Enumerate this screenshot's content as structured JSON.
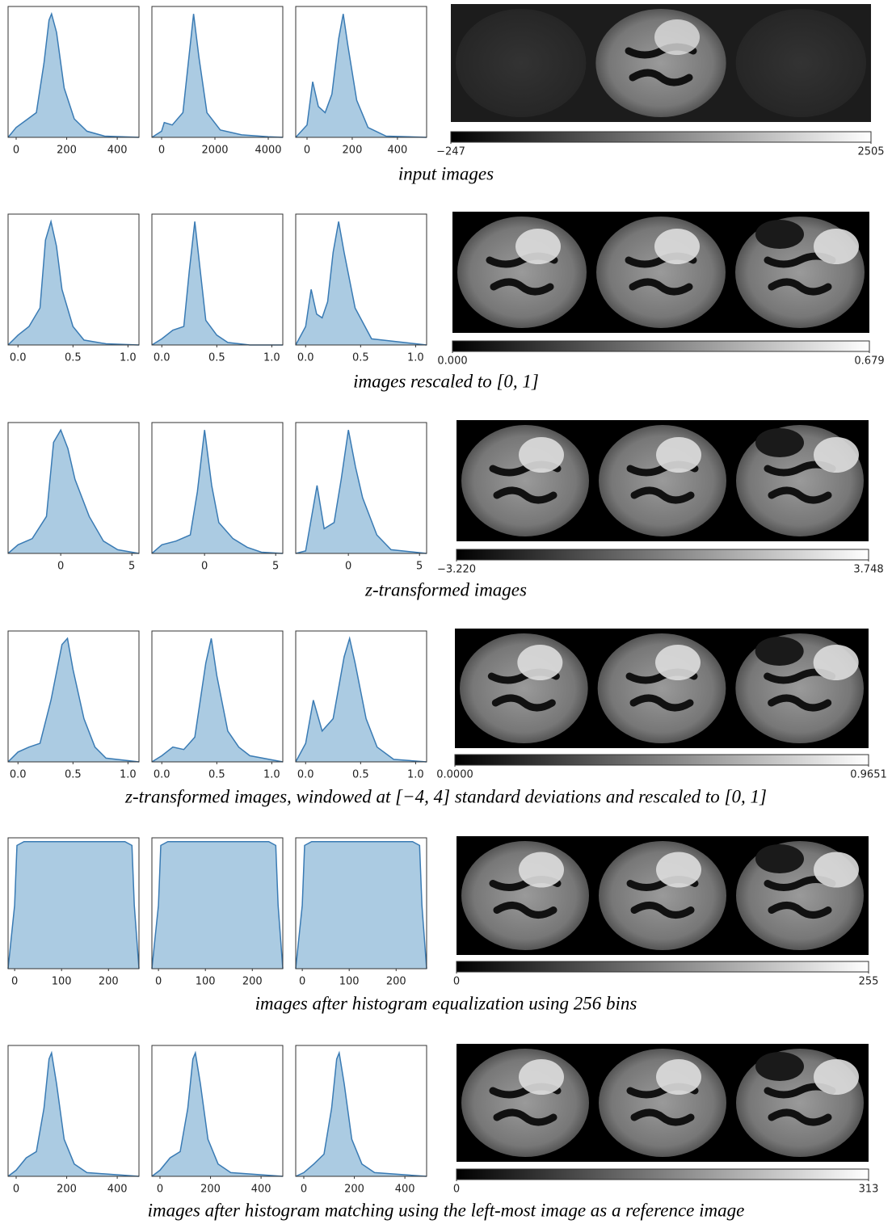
{
  "rows": [
    {
      "caption": "input images",
      "charts": [
        {
          "type": "area",
          "color": "#3a7bb4",
          "xlim": [
            -32,
            486
          ],
          "ylim": [
            0,
            1.06
          ],
          "xticks": [
            0,
            200,
            400
          ],
          "x": [
            -32,
            0,
            40,
            80,
            110,
            130,
            140,
            160,
            190,
            230,
            280,
            350,
            486
          ],
          "values": [
            0,
            0.08,
            0.14,
            0.2,
            0.6,
            0.95,
            1,
            0.85,
            0.4,
            0.15,
            0.05,
            0.01,
            0
          ]
        },
        {
          "type": "area",
          "color": "#3a7bb4",
          "xlim": [
            -364,
            4545
          ],
          "ylim": [
            0,
            1.06
          ],
          "xticks": [
            0,
            2000,
            4000
          ],
          "x": [
            -364,
            0,
            100,
            400,
            800,
            1000,
            1200,
            1400,
            1700,
            2200,
            3000,
            4000,
            4545
          ],
          "values": [
            0,
            0.05,
            0.12,
            0.1,
            0.2,
            0.6,
            1,
            0.65,
            0.2,
            0.06,
            0.02,
            0.005,
            0
          ]
        },
        {
          "type": "area",
          "color": "#3a7bb4",
          "xlim": [
            -50,
            529
          ],
          "ylim": [
            0,
            1.06
          ],
          "xticks": [
            0,
            200,
            400
          ],
          "x": [
            -50,
            0,
            25,
            50,
            80,
            110,
            140,
            160,
            180,
            220,
            270,
            350,
            529
          ],
          "values": [
            0,
            0.1,
            0.45,
            0.25,
            0.2,
            0.35,
            0.8,
            1,
            0.75,
            0.3,
            0.08,
            0.01,
            0
          ]
        }
      ],
      "colorbar": {
        "lim": [
          -247,
          2505
        ],
        "ticks": [
          {
            "value": -247,
            "label": "−247"
          },
          2505
        ]
      }
    },
    {
      "caption": "images rescaled to [0, 1]",
      "charts": [
        {
          "type": "area",
          "color": "#3a7bb4",
          "xlim": [
            -0.09,
            1.1
          ],
          "ylim": [
            0,
            1.06
          ],
          "xticks": [
            {
              "value": 0,
              "label": "0.0"
            },
            0.5,
            {
              "value": 1,
              "label": "1.0"
            }
          ],
          "x": [
            -0.09,
            0,
            0.1,
            0.2,
            0.25,
            0.3,
            0.35,
            0.4,
            0.5,
            0.6,
            0.8,
            1.1
          ],
          "values": [
            0,
            0.08,
            0.15,
            0.3,
            0.85,
            1,
            0.8,
            0.45,
            0.15,
            0.04,
            0.01,
            0
          ]
        },
        {
          "type": "area",
          "color": "#3a7bb4",
          "xlim": [
            -0.09,
            1.1
          ],
          "ylim": [
            0,
            1.06
          ],
          "xticks": [
            {
              "value": 0,
              "label": "0.0"
            },
            0.5,
            {
              "value": 1,
              "label": "1.0"
            }
          ],
          "x": [
            -0.09,
            0,
            0.1,
            0.2,
            0.25,
            0.3,
            0.35,
            0.4,
            0.5,
            0.6,
            0.8,
            1.1
          ],
          "values": [
            0,
            0.05,
            0.12,
            0.15,
            0.6,
            1,
            0.6,
            0.2,
            0.08,
            0.02,
            0,
            0
          ]
        },
        {
          "type": "area",
          "color": "#3a7bb4",
          "xlim": [
            -0.09,
            1.1
          ],
          "ylim": [
            0,
            1.06
          ],
          "xticks": [
            {
              "value": 0,
              "label": "0.0"
            },
            0.5,
            {
              "value": 1,
              "label": "1.0"
            }
          ],
          "x": [
            -0.09,
            0,
            0.05,
            0.1,
            0.15,
            0.2,
            0.25,
            0.3,
            0.35,
            0.45,
            0.6,
            1.1
          ],
          "values": [
            0,
            0.15,
            0.45,
            0.25,
            0.22,
            0.35,
            0.75,
            1,
            0.75,
            0.3,
            0.05,
            0
          ]
        }
      ],
      "colorbar": {
        "lim": [
          0,
          0.679
        ],
        "ticks": [
          {
            "value": 0,
            "label": "0.000"
          },
          0.679
        ]
      }
    },
    {
      "caption": "z-transformed images",
      "charts": [
        {
          "type": "area",
          "color": "#3a7bb4",
          "xlim": [
            -3.7,
            5.5
          ],
          "ylim": [
            0,
            1.06
          ],
          "xticks": [
            0,
            5
          ],
          "x": [
            -3.7,
            -3,
            -2,
            -1,
            -0.5,
            0,
            0.5,
            1,
            2,
            3,
            4,
            5.5
          ],
          "values": [
            0,
            0.07,
            0.12,
            0.3,
            0.9,
            1,
            0.85,
            0.6,
            0.3,
            0.1,
            0.03,
            0
          ]
        },
        {
          "type": "area",
          "color": "#3a7bb4",
          "xlim": [
            -3.7,
            5.5
          ],
          "ylim": [
            0,
            1.06
          ],
          "xticks": [
            0,
            5
          ],
          "x": [
            -3.7,
            -3,
            -2,
            -1,
            -0.5,
            0,
            0.5,
            1,
            2,
            3,
            4,
            5.5
          ],
          "values": [
            0,
            0.07,
            0.1,
            0.15,
            0.5,
            1,
            0.55,
            0.25,
            0.12,
            0.05,
            0.01,
            0
          ]
        },
        {
          "type": "area",
          "color": "#3a7bb4",
          "xlim": [
            -3.7,
            5.5
          ],
          "ylim": [
            0,
            1.06
          ],
          "xticks": [
            0,
            5
          ],
          "x": [
            -3.7,
            -3,
            -2.2,
            -1.7,
            -1,
            -0.5,
            0,
            0.5,
            1,
            2,
            3,
            5.5
          ],
          "values": [
            0,
            0.02,
            0.55,
            0.2,
            0.25,
            0.6,
            1,
            0.7,
            0.45,
            0.15,
            0.03,
            0
          ]
        }
      ],
      "colorbar": {
        "lim": [
          -3.22,
          3.748
        ],
        "ticks": [
          {
            "value": -3.22,
            "label": "−3.220"
          },
          3.748
        ]
      }
    },
    {
      "caption": "z-transformed images, windowed at [−4, 4] standard deviations and rescaled to [0, 1]",
      "charts": [
        {
          "type": "area",
          "color": "#3a7bb4",
          "xlim": [
            -0.09,
            1.1
          ],
          "ylim": [
            0,
            1.06
          ],
          "xticks": [
            {
              "value": 0,
              "label": "0.0"
            },
            0.5,
            {
              "value": 1,
              "label": "1.0"
            }
          ],
          "x": [
            -0.09,
            0,
            0.1,
            0.2,
            0.3,
            0.4,
            0.45,
            0.5,
            0.6,
            0.7,
            0.8,
            1.1
          ],
          "values": [
            0,
            0.08,
            0.12,
            0.15,
            0.5,
            0.95,
            1,
            0.75,
            0.35,
            0.12,
            0.03,
            0
          ]
        },
        {
          "type": "area",
          "color": "#3a7bb4",
          "xlim": [
            -0.09,
            1.1
          ],
          "ylim": [
            0,
            1.06
          ],
          "xticks": [
            {
              "value": 0,
              "label": "0.0"
            },
            0.5,
            {
              "value": 1,
              "label": "1.0"
            }
          ],
          "x": [
            -0.09,
            0,
            0.1,
            0.2,
            0.3,
            0.4,
            0.45,
            0.5,
            0.6,
            0.7,
            0.8,
            1.1
          ],
          "values": [
            0,
            0.05,
            0.12,
            0.1,
            0.2,
            0.8,
            1,
            0.7,
            0.25,
            0.12,
            0.05,
            0
          ]
        },
        {
          "type": "area",
          "color": "#3a7bb4",
          "xlim": [
            -0.09,
            1.1
          ],
          "ylim": [
            0,
            1.06
          ],
          "xticks": [
            {
              "value": 0,
              "label": "0.0"
            },
            0.5,
            {
              "value": 1,
              "label": "1.0"
            }
          ],
          "x": [
            -0.09,
            0,
            0.07,
            0.15,
            0.25,
            0.35,
            0.4,
            0.45,
            0.55,
            0.65,
            0.8,
            1.1
          ],
          "values": [
            0,
            0.15,
            0.5,
            0.25,
            0.35,
            0.85,
            1,
            0.8,
            0.35,
            0.12,
            0.02,
            0
          ]
        }
      ],
      "colorbar": {
        "lim": [
          0,
          0.9651
        ],
        "ticks": [
          {
            "value": 0,
            "label": "0.0000"
          },
          0.9651
        ]
      }
    },
    {
      "caption": "images after histogram equalization using 256 bins",
      "charts": [
        {
          "type": "area",
          "color": "#3a7bb4",
          "xlim": [
            -14,
            265
          ],
          "ylim": [
            0,
            1.03
          ],
          "xticks": [
            0,
            100,
            200
          ],
          "x": [
            -14,
            0,
            5,
            20,
            128,
            235,
            250,
            255,
            265
          ],
          "values": [
            0,
            0.5,
            0.97,
            1,
            1,
            1,
            0.97,
            0.5,
            0
          ]
        },
        {
          "type": "area",
          "color": "#3a7bb4",
          "xlim": [
            -14,
            265
          ],
          "ylim": [
            0,
            1.03
          ],
          "xticks": [
            0,
            100,
            200
          ],
          "x": [
            -14,
            0,
            5,
            20,
            128,
            235,
            250,
            255,
            265
          ],
          "values": [
            0,
            0.5,
            0.97,
            1,
            1,
            1,
            0.97,
            0.5,
            0
          ]
        },
        {
          "type": "area",
          "color": "#3a7bb4",
          "xlim": [
            -14,
            265
          ],
          "ylim": [
            0,
            1.03
          ],
          "xticks": [
            0,
            100,
            200
          ],
          "x": [
            -14,
            0,
            5,
            20,
            128,
            235,
            250,
            255,
            265
          ],
          "values": [
            0,
            0.5,
            0.97,
            1,
            1,
            1,
            0.97,
            0.5,
            0
          ]
        }
      ],
      "colorbar": {
        "lim": [
          0,
          255
        ],
        "ticks": [
          0,
          255
        ]
      }
    },
    {
      "caption": "images after histogram matching using the left-most image as a reference image",
      "charts": [
        {
          "type": "area",
          "color": "#3a7bb4",
          "xlim": [
            -32,
            486
          ],
          "ylim": [
            0,
            1.06
          ],
          "xticks": [
            0,
            200,
            400
          ],
          "x": [
            -32,
            0,
            40,
            80,
            110,
            130,
            140,
            160,
            190,
            230,
            280,
            486
          ],
          "values": [
            0,
            0.05,
            0.15,
            0.2,
            0.55,
            0.95,
            1,
            0.75,
            0.3,
            0.1,
            0.03,
            0
          ]
        },
        {
          "type": "area",
          "color": "#3a7bb4",
          "xlim": [
            -32,
            486
          ],
          "ylim": [
            0,
            1.06
          ],
          "xticks": [
            0,
            200,
            400
          ],
          "x": [
            -32,
            0,
            40,
            80,
            110,
            130,
            140,
            160,
            190,
            230,
            280,
            486
          ],
          "values": [
            0,
            0.05,
            0.15,
            0.2,
            0.55,
            0.95,
            1,
            0.75,
            0.3,
            0.1,
            0.03,
            0
          ]
        },
        {
          "type": "area",
          "color": "#3a7bb4",
          "xlim": [
            -32,
            486
          ],
          "ylim": [
            0,
            1.06
          ],
          "xticks": [
            0,
            200,
            400
          ],
          "x": [
            -32,
            0,
            40,
            80,
            110,
            130,
            140,
            160,
            190,
            230,
            280,
            486
          ],
          "values": [
            0,
            0.03,
            0.1,
            0.18,
            0.55,
            0.95,
            1,
            0.75,
            0.3,
            0.1,
            0.03,
            0
          ]
        }
      ],
      "colorbar": {
        "lim": [
          0,
          313
        ],
        "ticks": [
          0,
          313
        ]
      }
    }
  ]
}
